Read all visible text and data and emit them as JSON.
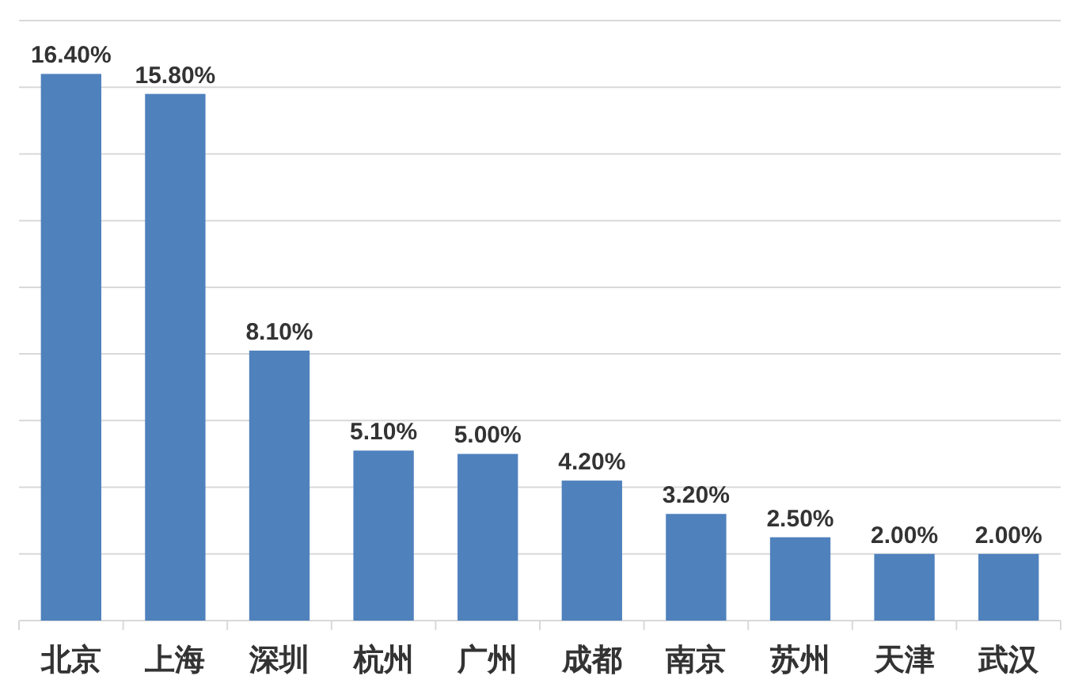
{
  "chart_data": {
    "type": "bar",
    "categories": [
      "北京",
      "上海",
      "深圳",
      "杭州",
      "广州",
      "成都",
      "南京",
      "苏州",
      "天津",
      "武汉"
    ],
    "values": [
      16.4,
      15.8,
      8.1,
      5.1,
      5.0,
      4.2,
      3.2,
      2.5,
      2.0,
      2.0
    ],
    "value_labels": [
      "16.40%",
      "15.80%",
      "8.10%",
      "5.10%",
      "5.00%",
      "4.20%",
      "3.20%",
      "2.50%",
      "2.00%",
      "2.00%"
    ],
    "color": "#4f81bd",
    "ylim": [
      0,
      18
    ],
    "yticks": [
      {
        "value": 0,
        "label": null
      },
      {
        "value": 2,
        "label": null
      },
      {
        "value": 4,
        "label": null
      },
      {
        "value": 6,
        "label": null
      },
      {
        "value": 8,
        "label": null
      },
      {
        "value": 10,
        "label": null
      },
      {
        "value": 12,
        "label": null
      },
      {
        "value": 14,
        "label": null
      },
      {
        "value": 16,
        "label": null
      },
      {
        "value": 18,
        "label": null
      }
    ],
    "tick_labels": "x",
    "grid": "y"
  }
}
